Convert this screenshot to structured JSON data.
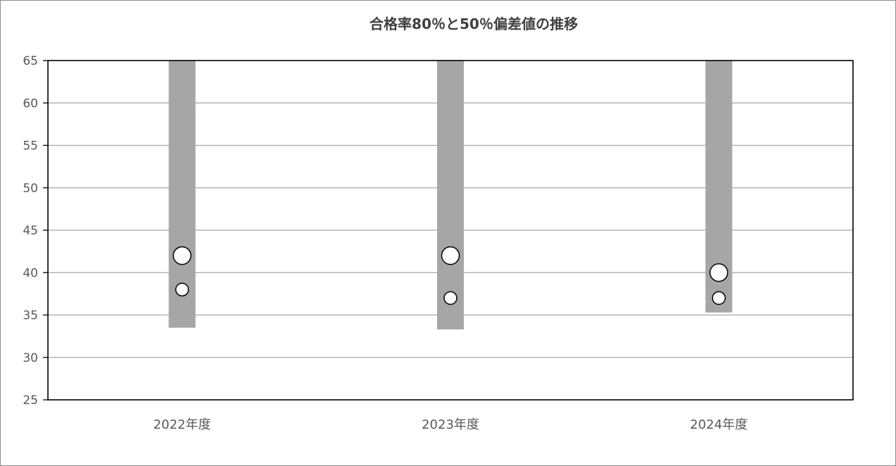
{
  "chart_data": {
    "type": "bar",
    "title": "合格率80％と50％偏差値の推移",
    "xlabel": "",
    "ylabel": "",
    "ylim": [
      25,
      65
    ],
    "y_ticks": [
      "25",
      "30",
      "35",
      "40",
      "45",
      "50",
      "55",
      "60",
      "65"
    ],
    "y_tick_values": [
      25,
      30,
      35,
      40,
      45,
      50,
      55,
      60,
      65
    ],
    "grid": true,
    "legend": "none",
    "categories": [
      "2022年度",
      "2023年度",
      "2024年度"
    ],
    "series": [
      {
        "type": "range-bar",
        "low": [
          33.5,
          33.3,
          35.3
        ],
        "high": [
          65,
          65,
          65
        ]
      },
      {
        "type": "scatter",
        "values": [
          42,
          42,
          40
        ]
      },
      {
        "type": "scatter",
        "values": [
          38,
          37,
          37
        ]
      }
    ],
    "colors": {
      "bar": "#a6a6a6",
      "grid": "#a6a6a6",
      "axis": "#000000",
      "marker_fill": "#ffffff",
      "marker_stroke": "#000000"
    }
  }
}
